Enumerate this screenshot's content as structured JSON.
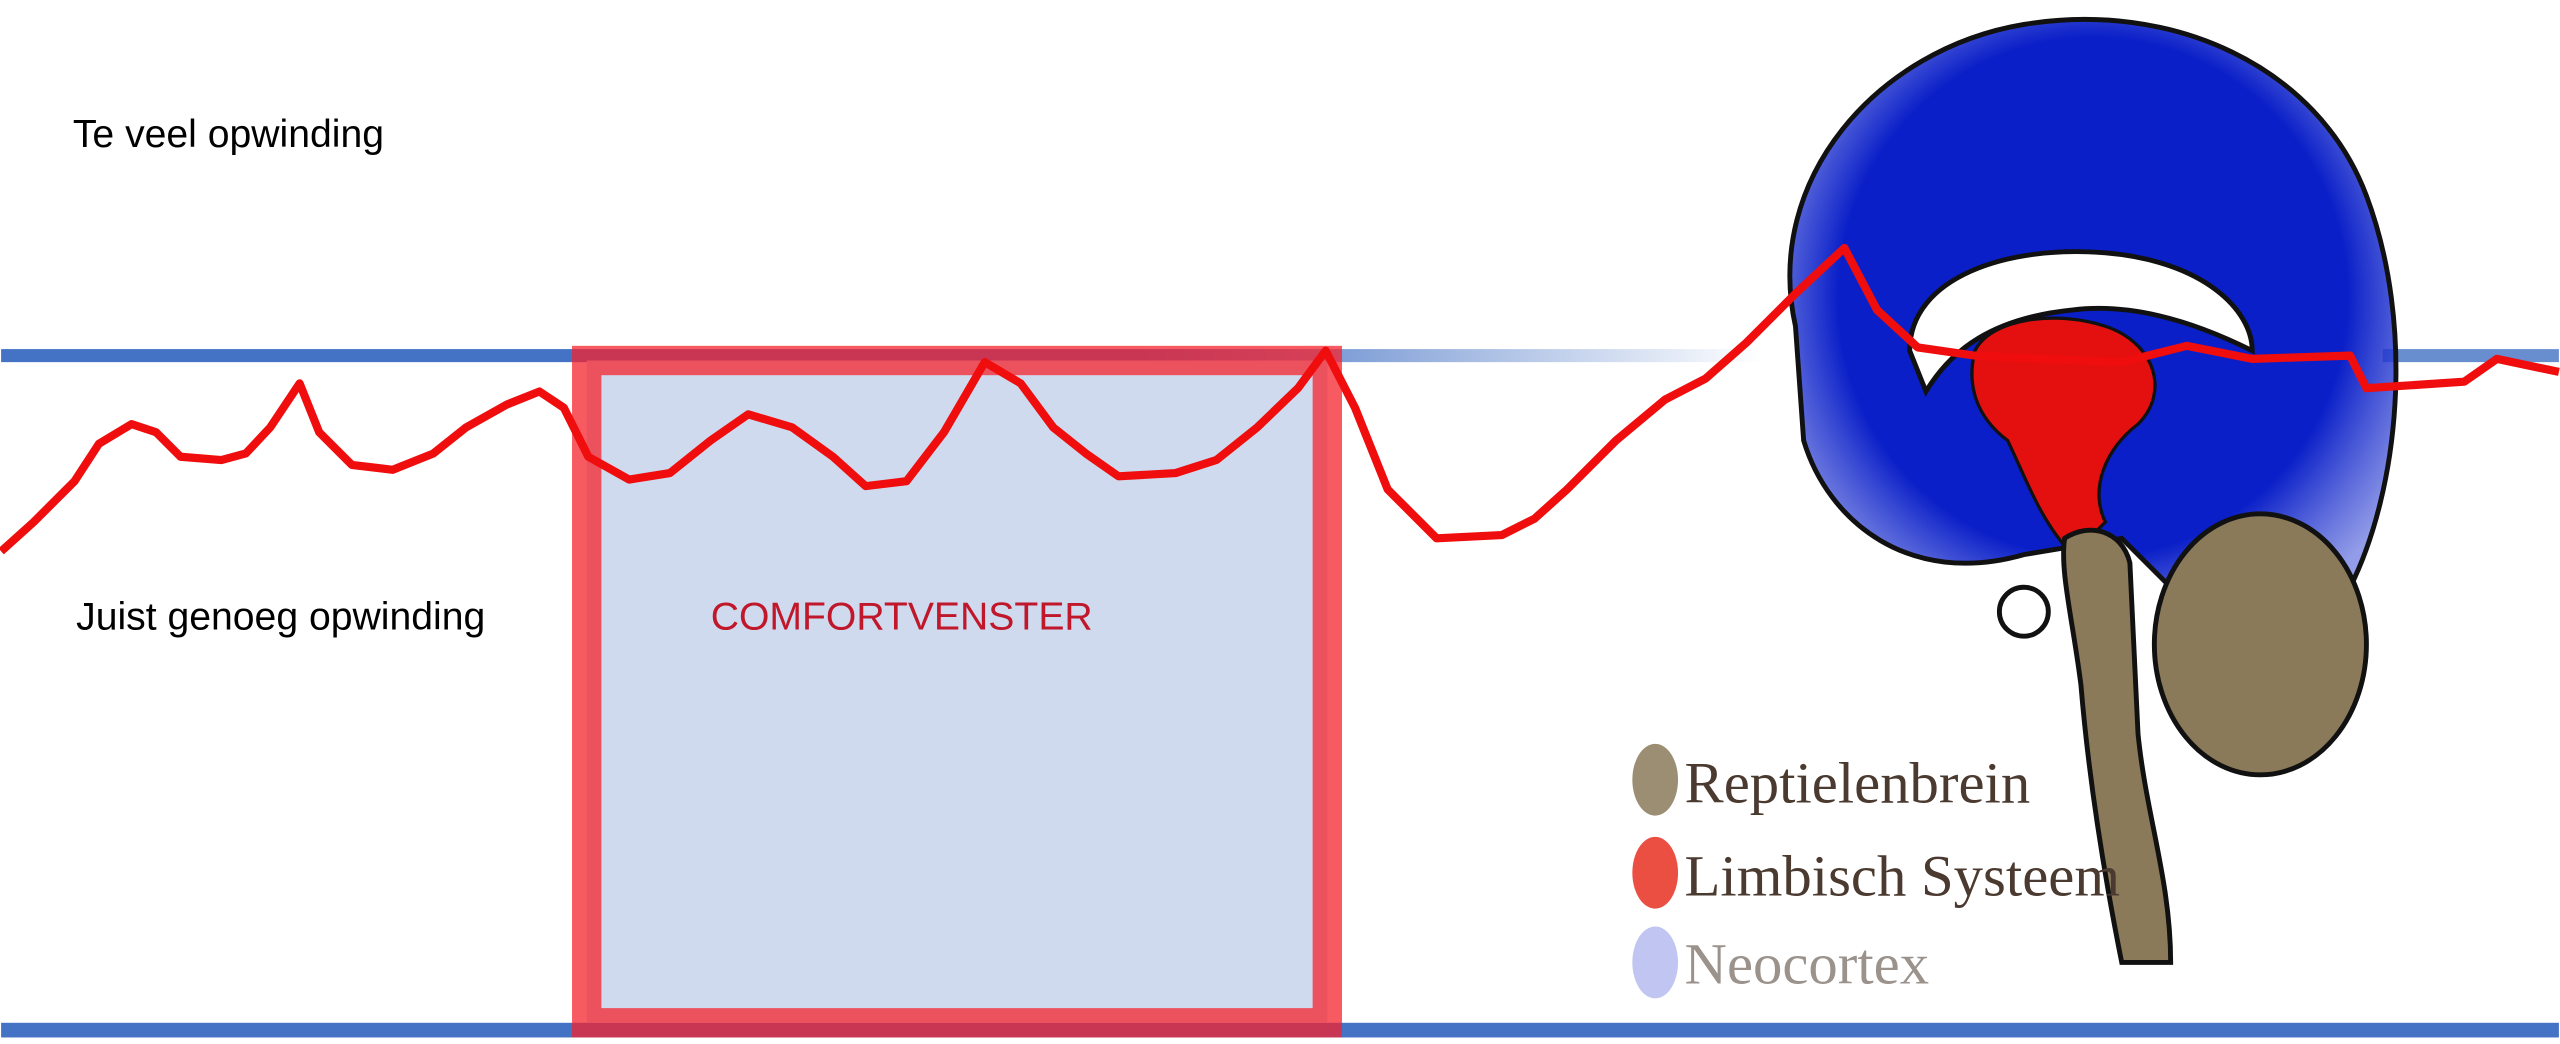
{
  "labels": {
    "too_much": "Te veel opwinding",
    "just_enough": "Juist genoeg opwinding",
    "window": "COMFORTVENSTER"
  },
  "legend": {
    "items": [
      "Reptielenbrein",
      "Limbisch Systeem",
      "Neocortex"
    ]
  }
}
